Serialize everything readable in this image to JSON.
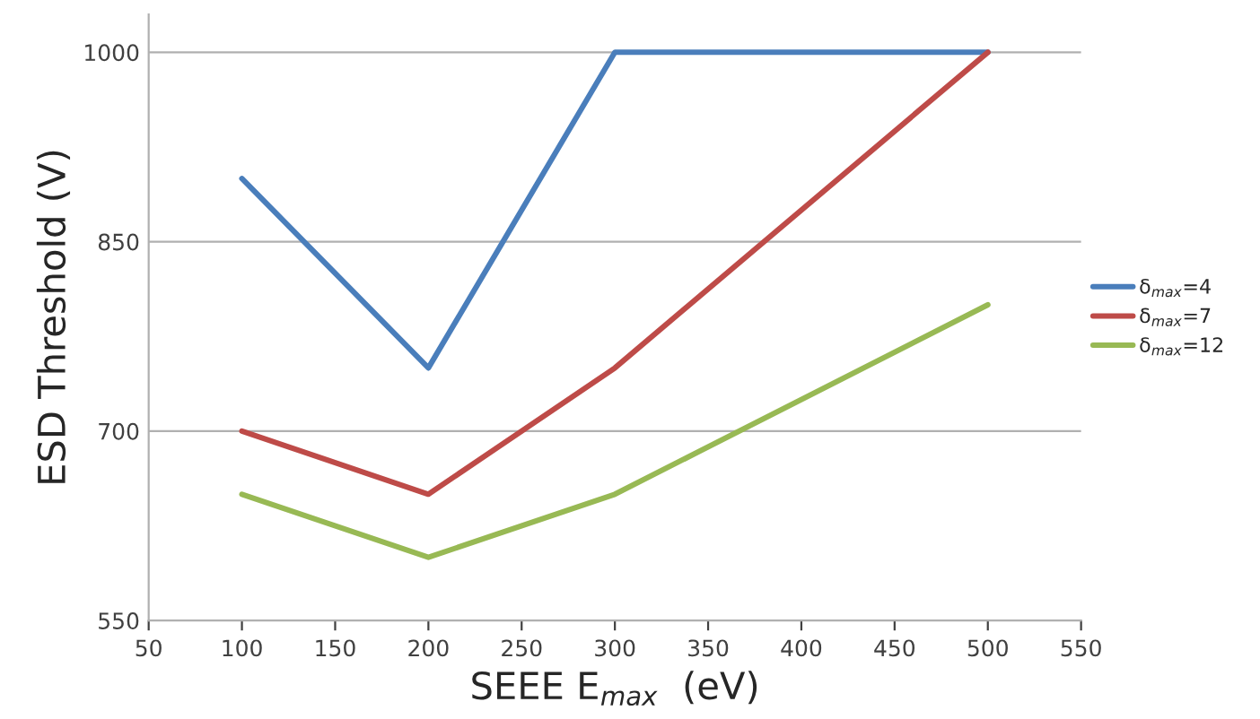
{
  "chart_data": {
    "type": "line",
    "xlabel": "SEEE E$_{max}$  (eV)",
    "ylabel": "ESD Threshold (V)",
    "x": [
      100,
      200,
      300,
      500
    ],
    "series": [
      {
        "name": "δ$_{max}$=4",
        "color": "#4a7ebb",
        "values": [
          900,
          750,
          1000,
          1000
        ]
      },
      {
        "name": "δ$_{max}$=7",
        "color": "#be4b48",
        "values": [
          700,
          650,
          750,
          1000
        ]
      },
      {
        "name": "δ$_{max}$=12",
        "color": "#98b954",
        "values": [
          650,
          600,
          650,
          800
        ]
      }
    ],
    "xlim": [
      50,
      550
    ],
    "xticks": [
      50,
      100,
      150,
      200,
      250,
      300,
      350,
      400,
      450,
      500,
      550
    ],
    "ylim": [
      550,
      1030
    ],
    "yticks": [
      550,
      700,
      850,
      1000
    ],
    "grid": "y",
    "legend": "right",
    "marker": "none",
    "line_style": "solid"
  }
}
